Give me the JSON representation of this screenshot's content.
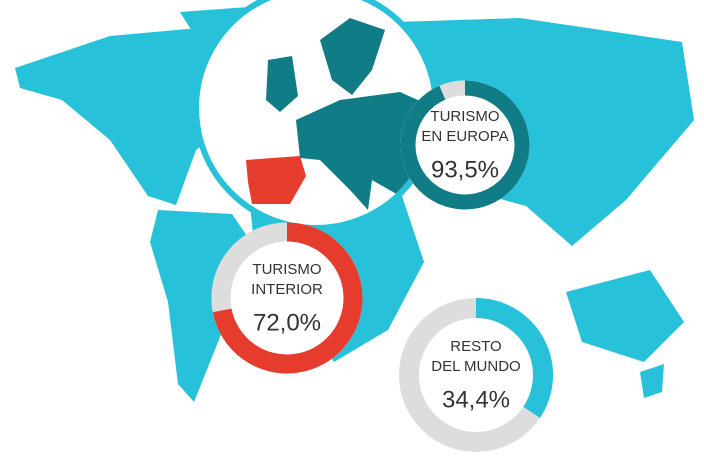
{
  "chart_data": [
    {
      "type": "donut",
      "title_lines": [
        "TURISMO",
        "EN EUROPA"
      ],
      "values": [
        93.5
      ],
      "value_labels": [
        "93,5%"
      ],
      "color": "#0f7c86",
      "track_color": "#dddddd"
    },
    {
      "type": "donut",
      "title_lines": [
        "TURISMO",
        "INTERIOR"
      ],
      "values": [
        72.0
      ],
      "value_labels": [
        "72,0%"
      ],
      "color": "#e53c2e",
      "track_color": "#dddddd"
    },
    {
      "type": "donut",
      "title_lines": [
        "RESTO",
        "DEL MUNDO"
      ],
      "values": [
        34.4
      ],
      "value_labels": [
        "34,4%"
      ],
      "color": "#28c1da",
      "track_color": "#dddddd"
    }
  ]
}
